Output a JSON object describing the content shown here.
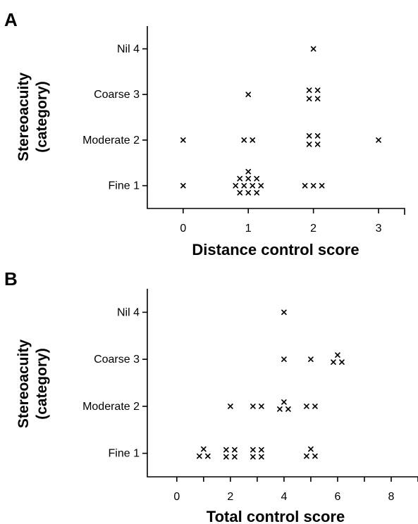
{
  "chart_data": [
    {
      "type": "scatter",
      "panel_label": "A",
      "xlabel": "Distance control score",
      "ylabel_line1": "Stereoacuity",
      "ylabel_line2": "(category)",
      "xticks": [
        "0",
        "1",
        "2",
        "3"
      ],
      "xlim": [
        -0.55,
        3.4
      ],
      "yticks": [
        "Fine 1",
        "Moderate 2",
        "Coarse 3",
        "Nil 4"
      ],
      "ylim": [
        0.5,
        4.5
      ],
      "grid": false,
      "points": [
        {
          "x": 0,
          "y": 1,
          "n": 1
        },
        {
          "x": 0,
          "y": 2,
          "n": 1
        },
        {
          "x": 1,
          "y": 1,
          "n": 11
        },
        {
          "x": 1,
          "y": 2,
          "n": 2
        },
        {
          "x": 1,
          "y": 3,
          "n": 1
        },
        {
          "x": 2,
          "y": 1,
          "n": 3
        },
        {
          "x": 2,
          "y": 2,
          "n": 4
        },
        {
          "x": 2,
          "y": 3,
          "n": 4
        },
        {
          "x": 2,
          "y": 4,
          "n": 1
        },
        {
          "x": 3,
          "y": 2,
          "n": 1
        }
      ]
    },
    {
      "type": "scatter",
      "panel_label": "B",
      "xlabel": "Total control score",
      "ylabel_line1": "Stereoacuity",
      "ylabel_line2": "(category)",
      "xticks": [
        "0",
        "2",
        "4",
        "6",
        "8"
      ],
      "xlim": [
        -1.1,
        9.0
      ],
      "yticks": [
        "Fine 1",
        "Moderate 2",
        "Coarse 3",
        "Nil 4"
      ],
      "ylim": [
        0.5,
        4.5
      ],
      "grid": false,
      "points": [
        {
          "x": 1,
          "y": 1,
          "n": 3
        },
        {
          "x": 2,
          "y": 1,
          "n": 4
        },
        {
          "x": 2,
          "y": 2,
          "n": 1
        },
        {
          "x": 3,
          "y": 1,
          "n": 4
        },
        {
          "x": 3,
          "y": 2,
          "n": 2
        },
        {
          "x": 4,
          "y": 2,
          "n": 3
        },
        {
          "x": 4,
          "y": 3,
          "n": 1
        },
        {
          "x": 4,
          "y": 4,
          "n": 1
        },
        {
          "x": 5,
          "y": 1,
          "n": 3
        },
        {
          "x": 5,
          "y": 2,
          "n": 2
        },
        {
          "x": 5,
          "y": 3,
          "n": 1
        },
        {
          "x": 6,
          "y": 3,
          "n": 3
        }
      ]
    }
  ]
}
